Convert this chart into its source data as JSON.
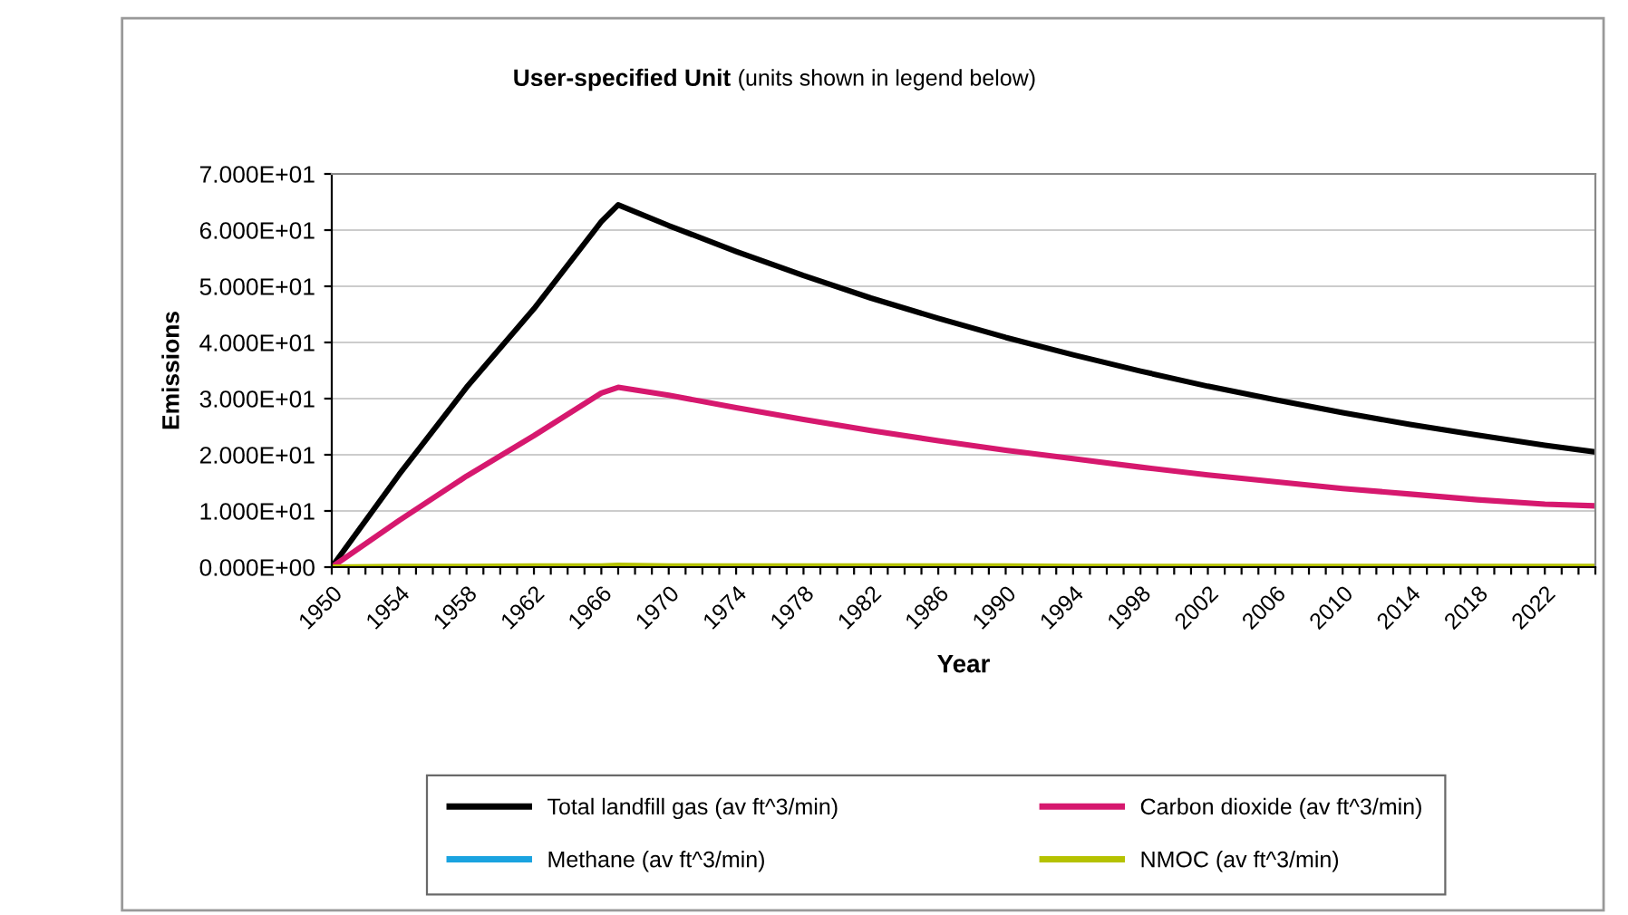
{
  "chart_data": {
    "type": "line",
    "title": "User-specified Unit",
    "subtitle": "(units shown in legend below)",
    "xlabel": "Year",
    "ylabel": "Emissions",
    "xlim": [
      1950,
      2025
    ],
    "ylim": [
      0,
      70
    ],
    "xticks": [
      1950,
      {
        "value": 1951,
        "label": null
      },
      {
        "value": 1952,
        "label": null
      },
      {
        "value": 1953,
        "label": null
      },
      1954,
      {
        "value": 1955,
        "label": null
      },
      {
        "value": 1956,
        "label": null
      },
      {
        "value": 1957,
        "label": null
      },
      1958,
      {
        "value": 1959,
        "label": null
      },
      {
        "value": 1960,
        "label": null
      },
      {
        "value": 1961,
        "label": null
      },
      1962,
      {
        "value": 1963,
        "label": null
      },
      {
        "value": 1964,
        "label": null
      },
      {
        "value": 1965,
        "label": null
      },
      1966,
      {
        "value": 1967,
        "label": null
      },
      {
        "value": 1968,
        "label": null
      },
      {
        "value": 1969,
        "label": null
      },
      1970,
      {
        "value": 1971,
        "label": null
      },
      {
        "value": 1972,
        "label": null
      },
      {
        "value": 1973,
        "label": null
      },
      1974,
      {
        "value": 1975,
        "label": null
      },
      {
        "value": 1976,
        "label": null
      },
      {
        "value": 1977,
        "label": null
      },
      1978,
      {
        "value": 1979,
        "label": null
      },
      {
        "value": 1980,
        "label": null
      },
      {
        "value": 1981,
        "label": null
      },
      1982,
      {
        "value": 1983,
        "label": null
      },
      {
        "value": 1984,
        "label": null
      },
      {
        "value": 1985,
        "label": null
      },
      1986,
      {
        "value": 1987,
        "label": null
      },
      {
        "value": 1988,
        "label": null
      },
      {
        "value": 1989,
        "label": null
      },
      1990,
      {
        "value": 1991,
        "label": null
      },
      {
        "value": 1992,
        "label": null
      },
      {
        "value": 1993,
        "label": null
      },
      1994,
      {
        "value": 1995,
        "label": null
      },
      {
        "value": 1996,
        "label": null
      },
      {
        "value": 1997,
        "label": null
      },
      1998,
      {
        "value": 1999,
        "label": null
      },
      {
        "value": 2000,
        "label": null
      },
      {
        "value": 2001,
        "label": null
      },
      2002,
      {
        "value": 2003,
        "label": null
      },
      {
        "value": 2004,
        "label": null
      },
      {
        "value": 2005,
        "label": null
      },
      2006,
      {
        "value": 2007,
        "label": null
      },
      {
        "value": 2008,
        "label": null
      },
      {
        "value": 2009,
        "label": null
      },
      2010,
      {
        "value": 2011,
        "label": null
      },
      {
        "value": 2012,
        "label": null
      },
      {
        "value": 2013,
        "label": null
      },
      2014,
      {
        "value": 2015,
        "label": null
      },
      {
        "value": 2016,
        "label": null
      },
      {
        "value": 2017,
        "label": null
      },
      2018,
      {
        "value": 2019,
        "label": null
      },
      {
        "value": 2020,
        "label": null
      },
      {
        "value": 2021,
        "label": null
      },
      2022,
      {
        "value": 2023,
        "label": null
      },
      {
        "value": 2024,
        "label": null
      },
      {
        "value": 2025,
        "label": null
      }
    ],
    "yticks": [
      {
        "value": 0,
        "label": "0.000E+00"
      },
      {
        "value": 10,
        "label": "1.000E+01"
      },
      {
        "value": 20,
        "label": "2.000E+01"
      },
      {
        "value": 30,
        "label": "3.000E+01"
      },
      {
        "value": 40,
        "label": "4.000E+01"
      },
      {
        "value": 50,
        "label": "5.000E+01"
      },
      {
        "value": 60,
        "label": "6.000E+01"
      },
      {
        "value": 70,
        "label": "7.000E+01"
      }
    ],
    "grid": "y",
    "legend": "bottom",
    "marker": "none",
    "line_style": "solid",
    "x": [
      1950,
      1954,
      1958,
      1962,
      1966,
      1967,
      1970,
      1974,
      1978,
      1982,
      1986,
      1990,
      1994,
      1998,
      2002,
      2006,
      2010,
      2014,
      2018,
      2022,
      2025
    ],
    "series": [
      {
        "name": "Total landfill gas (av ft^3/min)",
        "color": "#000000",
        "values": [
          0,
          16.5,
          32,
          46,
          61.5,
          64.5,
          60.8,
          56.2,
          51.9,
          47.9,
          44.3,
          40.9,
          37.8,
          34.9,
          32.2,
          29.8,
          27.5,
          25.4,
          23.5,
          21.7,
          20.5
        ]
      },
      {
        "name": "Methane (av ft^3/min)",
        "color": "#1aa3e0",
        "values": [
          null,
          null,
          null,
          null,
          null,
          null,
          null,
          null,
          null,
          null,
          null,
          null,
          null,
          null,
          null,
          null,
          null,
          null,
          null,
          null,
          null
        ]
      },
      {
        "name": "Carbon dioxide (av ft^3/min)",
        "color": "#d6186e",
        "values": [
          0,
          8.3,
          16.2,
          23.4,
          31,
          32,
          30.6,
          28.4,
          26.3,
          24.3,
          22.5,
          20.8,
          19.3,
          17.8,
          16.4,
          15.2,
          14.0,
          13.0,
          12.0,
          11.2,
          10.9
        ]
      },
      {
        "name": "NMOC (av ft^3/min)",
        "color": "#b5c200",
        "values": [
          0,
          0.1,
          0.1,
          0.2,
          0.2,
          0.3,
          0.2,
          0.2,
          0.2,
          0.2,
          0.2,
          0.2,
          0.1,
          0.1,
          0.1,
          0.1,
          0.1,
          0.1,
          0.1,
          0.1,
          0.1
        ]
      }
    ]
  }
}
